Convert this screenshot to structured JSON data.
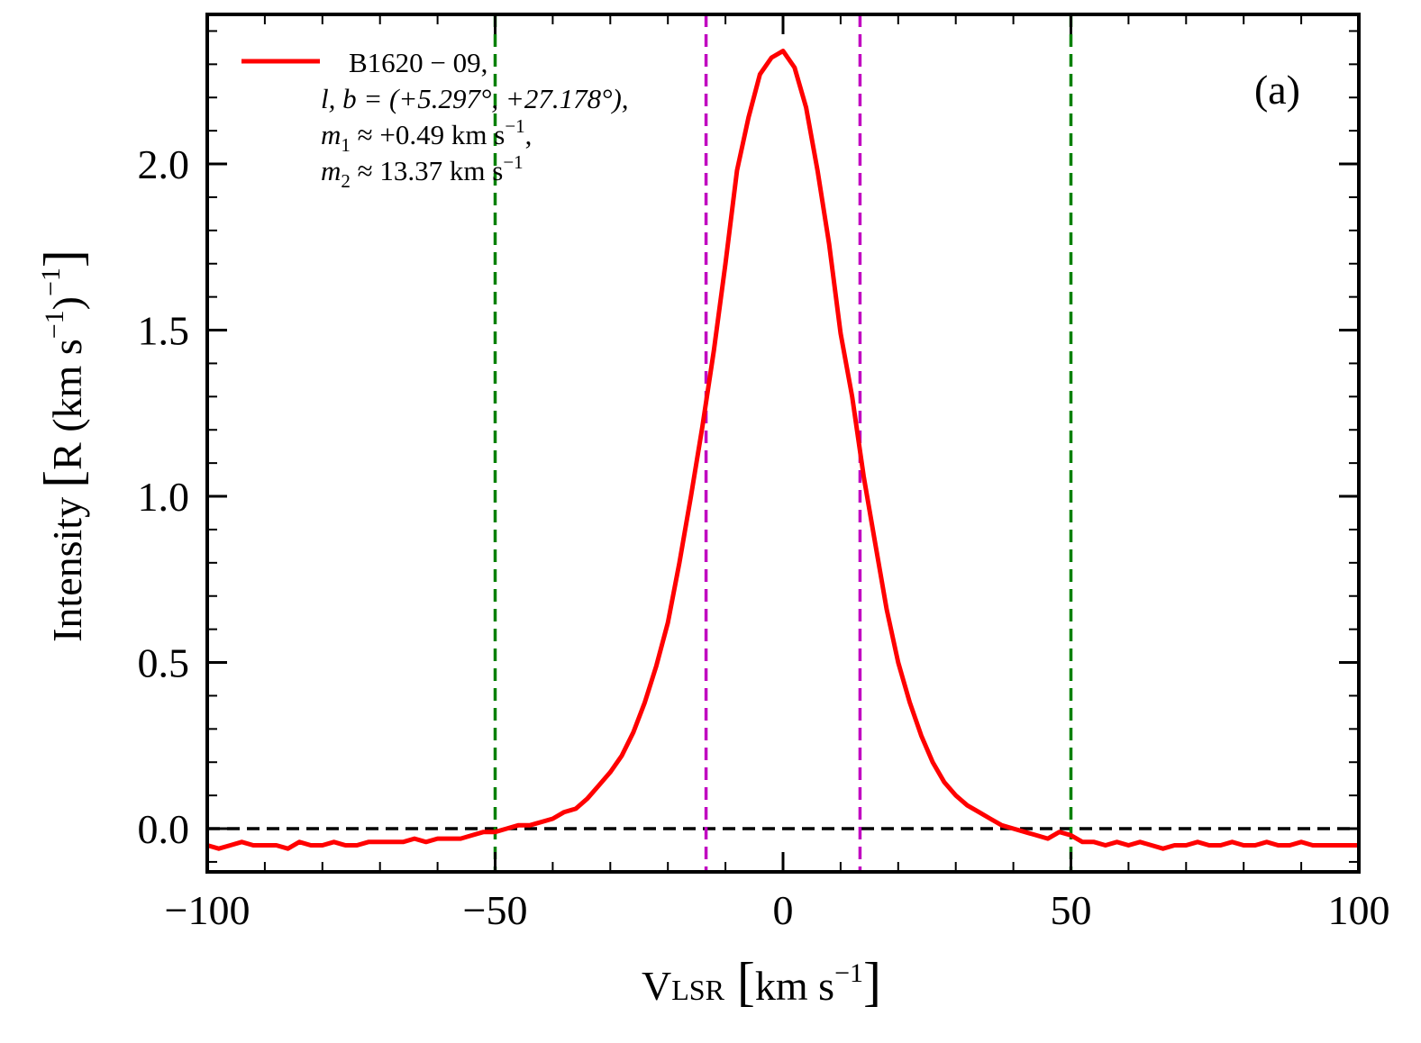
{
  "chart_data": {
    "type": "line",
    "panel_label": "(a)",
    "xlabel_main": "V",
    "xlabel_sub": "LSR",
    "xlabel_units": "km s",
    "xlabel_exp": "−1",
    "ylabel_main": "Intensity",
    "ylabel_units_pre": "R (km s",
    "ylabel_exp_inner": "−1",
    "ylabel_exp_outer": "−1",
    "xlim": [
      -100,
      100
    ],
    "ylim": [
      -0.13,
      2.45
    ],
    "x_ticks": [
      -100,
      -50,
      0,
      50,
      100
    ],
    "x_tick_labels": [
      "−100",
      "−50",
      "0",
      "50",
      "100"
    ],
    "y_ticks": [
      0.0,
      0.5,
      1.0,
      1.5,
      2.0
    ],
    "y_tick_labels": [
      "0.0",
      "0.5",
      "1.0",
      "1.5",
      "2.0"
    ],
    "legend": {
      "placement": "top-left",
      "series_name": "B1620 − 09,",
      "line2": "l, b = (+5.297°, +27.178°),",
      "line3_var": "m",
      "line3_sub": "1",
      "line3_rest": " ≈ +0.49 km s",
      "line3_exp": "−1",
      "line3_end": ",",
      "line4_var": "m",
      "line4_sub": "2",
      "line4_rest": " ≈ 13.37 km s",
      "line4_exp": "−1"
    },
    "reference_lines": {
      "horizontal_baseline": 0.0,
      "green_vertical": [
        -50,
        50
      ],
      "magenta_vertical": [
        -13.37,
        13.37
      ]
    },
    "colors": {
      "series": "#ff0000",
      "green": "#008000",
      "magenta": "#c000c0",
      "baseline": "#000000"
    },
    "series": [
      {
        "name": "B1620−09",
        "x": [
          -100,
          -98,
          -96,
          -94,
          -92,
          -90,
          -88,
          -86,
          -84,
          -82,
          -80,
          -78,
          -76,
          -74,
          -72,
          -70,
          -68,
          -66,
          -64,
          -62,
          -60,
          -58,
          -56,
          -54,
          -52,
          -50,
          -48,
          -46,
          -44,
          -42,
          -40,
          -38,
          -36,
          -34,
          -32,
          -30,
          -28,
          -26,
          -24,
          -22,
          -20,
          -18,
          -16,
          -14,
          -12,
          -10,
          -8,
          -6,
          -4,
          -2,
          0,
          2,
          4,
          6,
          8,
          10,
          12,
          14,
          16,
          18,
          20,
          22,
          24,
          26,
          28,
          30,
          32,
          34,
          36,
          38,
          40,
          42,
          44,
          46,
          48,
          50,
          52,
          54,
          56,
          58,
          60,
          62,
          64,
          66,
          68,
          70,
          72,
          74,
          76,
          78,
          80,
          82,
          84,
          86,
          88,
          90,
          92,
          94,
          96,
          98,
          100
        ],
        "y": [
          -0.05,
          -0.06,
          -0.05,
          -0.04,
          -0.05,
          -0.05,
          -0.05,
          -0.06,
          -0.04,
          -0.05,
          -0.05,
          -0.04,
          -0.05,
          -0.05,
          -0.04,
          -0.04,
          -0.04,
          -0.04,
          -0.03,
          -0.04,
          -0.03,
          -0.03,
          -0.03,
          -0.02,
          -0.01,
          -0.01,
          0.0,
          0.01,
          0.01,
          0.02,
          0.03,
          0.05,
          0.06,
          0.09,
          0.13,
          0.17,
          0.22,
          0.29,
          0.38,
          0.49,
          0.62,
          0.8,
          1.0,
          1.21,
          1.44,
          1.7,
          1.98,
          2.14,
          2.27,
          2.32,
          2.34,
          2.29,
          2.17,
          1.98,
          1.76,
          1.49,
          1.3,
          1.06,
          0.86,
          0.66,
          0.5,
          0.38,
          0.28,
          0.2,
          0.14,
          0.1,
          0.07,
          0.05,
          0.03,
          0.01,
          0.0,
          -0.01,
          -0.02,
          -0.03,
          -0.01,
          -0.02,
          -0.04,
          -0.04,
          -0.05,
          -0.04,
          -0.05,
          -0.04,
          -0.05,
          -0.06,
          -0.05,
          -0.05,
          -0.04,
          -0.05,
          -0.05,
          -0.04,
          -0.05,
          -0.05,
          -0.04,
          -0.05,
          -0.05,
          -0.04,
          -0.05,
          -0.05,
          -0.05,
          -0.05,
          -0.05
        ]
      }
    ]
  }
}
